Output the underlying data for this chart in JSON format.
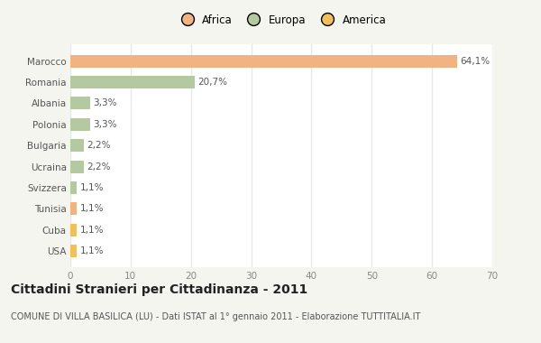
{
  "categories": [
    "Marocco",
    "Romania",
    "Albania",
    "Polonia",
    "Bulgaria",
    "Ucraina",
    "Svizzera",
    "Tunisia",
    "Cuba",
    "USA"
  ],
  "values": [
    64.1,
    20.7,
    3.3,
    3.3,
    2.2,
    2.2,
    1.1,
    1.1,
    1.1,
    1.1
  ],
  "labels": [
    "64,1%",
    "20,7%",
    "3,3%",
    "3,3%",
    "2,2%",
    "2,2%",
    "1,1%",
    "1,1%",
    "1,1%",
    "1,1%"
  ],
  "colors": [
    "#f0b482",
    "#b5c9a0",
    "#b5c9a0",
    "#b5c9a0",
    "#b5c9a0",
    "#b5c9a0",
    "#b5c9a0",
    "#f0b482",
    "#f0c060",
    "#f0c060"
  ],
  "legend": [
    {
      "label": "Africa",
      "color": "#f0b482"
    },
    {
      "label": "Europa",
      "color": "#b5c9a0"
    },
    {
      "label": "America",
      "color": "#f0c060"
    }
  ],
  "xlim": [
    0,
    70
  ],
  "xticks": [
    0,
    10,
    20,
    30,
    40,
    50,
    60,
    70
  ],
  "title": "Cittadini Stranieri per Cittadinanza - 2011",
  "subtitle": "COMUNE DI VILLA BASILICA (LU) - Dati ISTAT al 1° gennaio 2011 - Elaborazione TUTTITALIA.IT",
  "fig_background": "#f5f5f0",
  "plot_background": "#ffffff",
  "grid_color": "#e8e8e8",
  "bar_height": 0.6,
  "label_fontsize": 7.5,
  "tick_fontsize": 7.5,
  "title_fontsize": 10,
  "subtitle_fontsize": 7
}
